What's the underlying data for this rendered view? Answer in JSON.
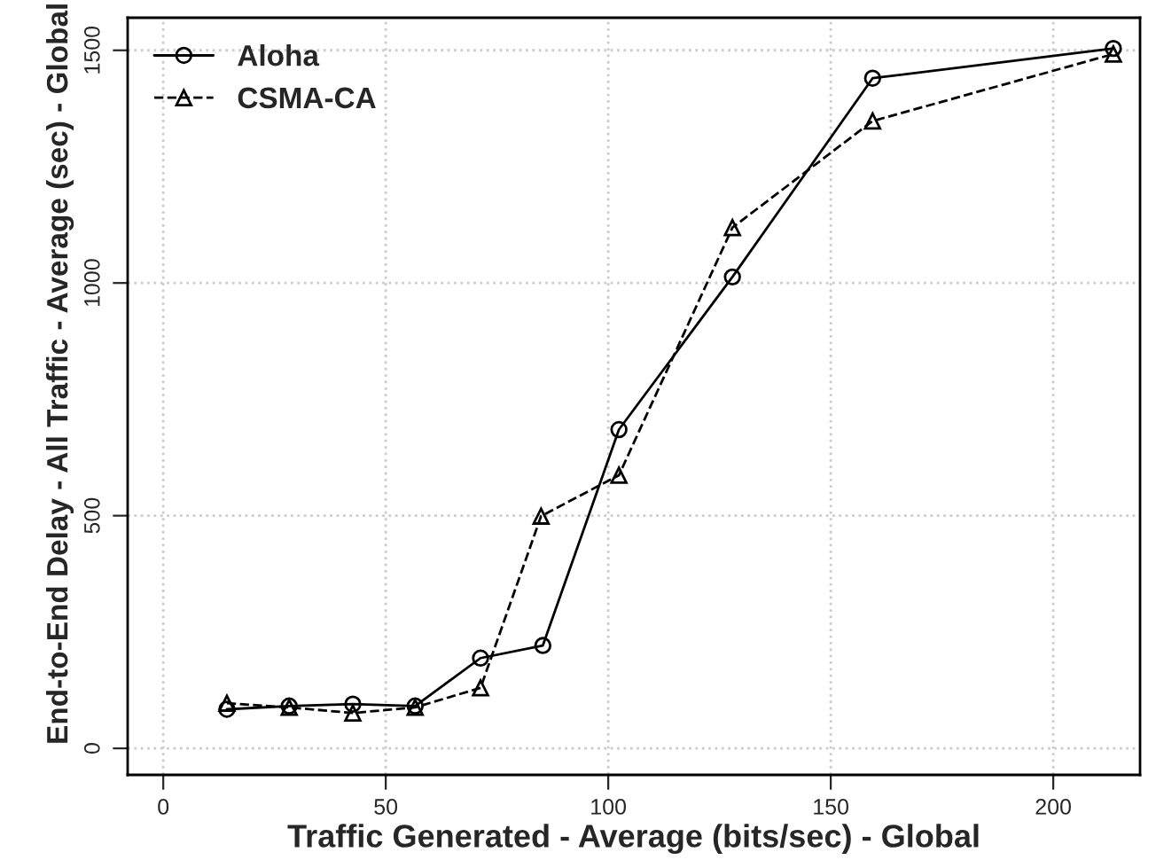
{
  "chart_data": {
    "type": "line",
    "xlabel": "Traffic Generated - Average (bits/sec) - Global",
    "ylabel": "End-to-End Delay - All Traffic - Average (sec) - Global",
    "xlim": [
      -8,
      219.5
    ],
    "ylim": [
      -57,
      1570
    ],
    "xticks": [
      0,
      50,
      100,
      150,
      200
    ],
    "yticks": [
      0,
      500,
      1000,
      1500
    ],
    "grid": true,
    "legend": "top left",
    "series": [
      {
        "name": "Aloha",
        "color": "#000000",
        "marker": "circle",
        "line_style": "solid",
        "x": [
          14.3,
          28.3,
          42.6,
          56.6,
          71.3,
          85.3,
          102.4,
          127.9,
          159.4,
          213.5
        ],
        "values": [
          84,
          91,
          95,
          91,
          194,
          221,
          685,
          1013,
          1440,
          1504
        ]
      },
      {
        "name": "CSMA-CA",
        "color": "#000000",
        "marker": "triangle",
        "line_style": "dashed",
        "x": [
          14.3,
          28.3,
          42.6,
          56.6,
          71.3,
          84.9,
          102.4,
          127.9,
          159.4,
          213.5
        ],
        "values": [
          97,
          88,
          76,
          88,
          130,
          499,
          587,
          1119,
          1348,
          1492
        ]
      }
    ]
  }
}
